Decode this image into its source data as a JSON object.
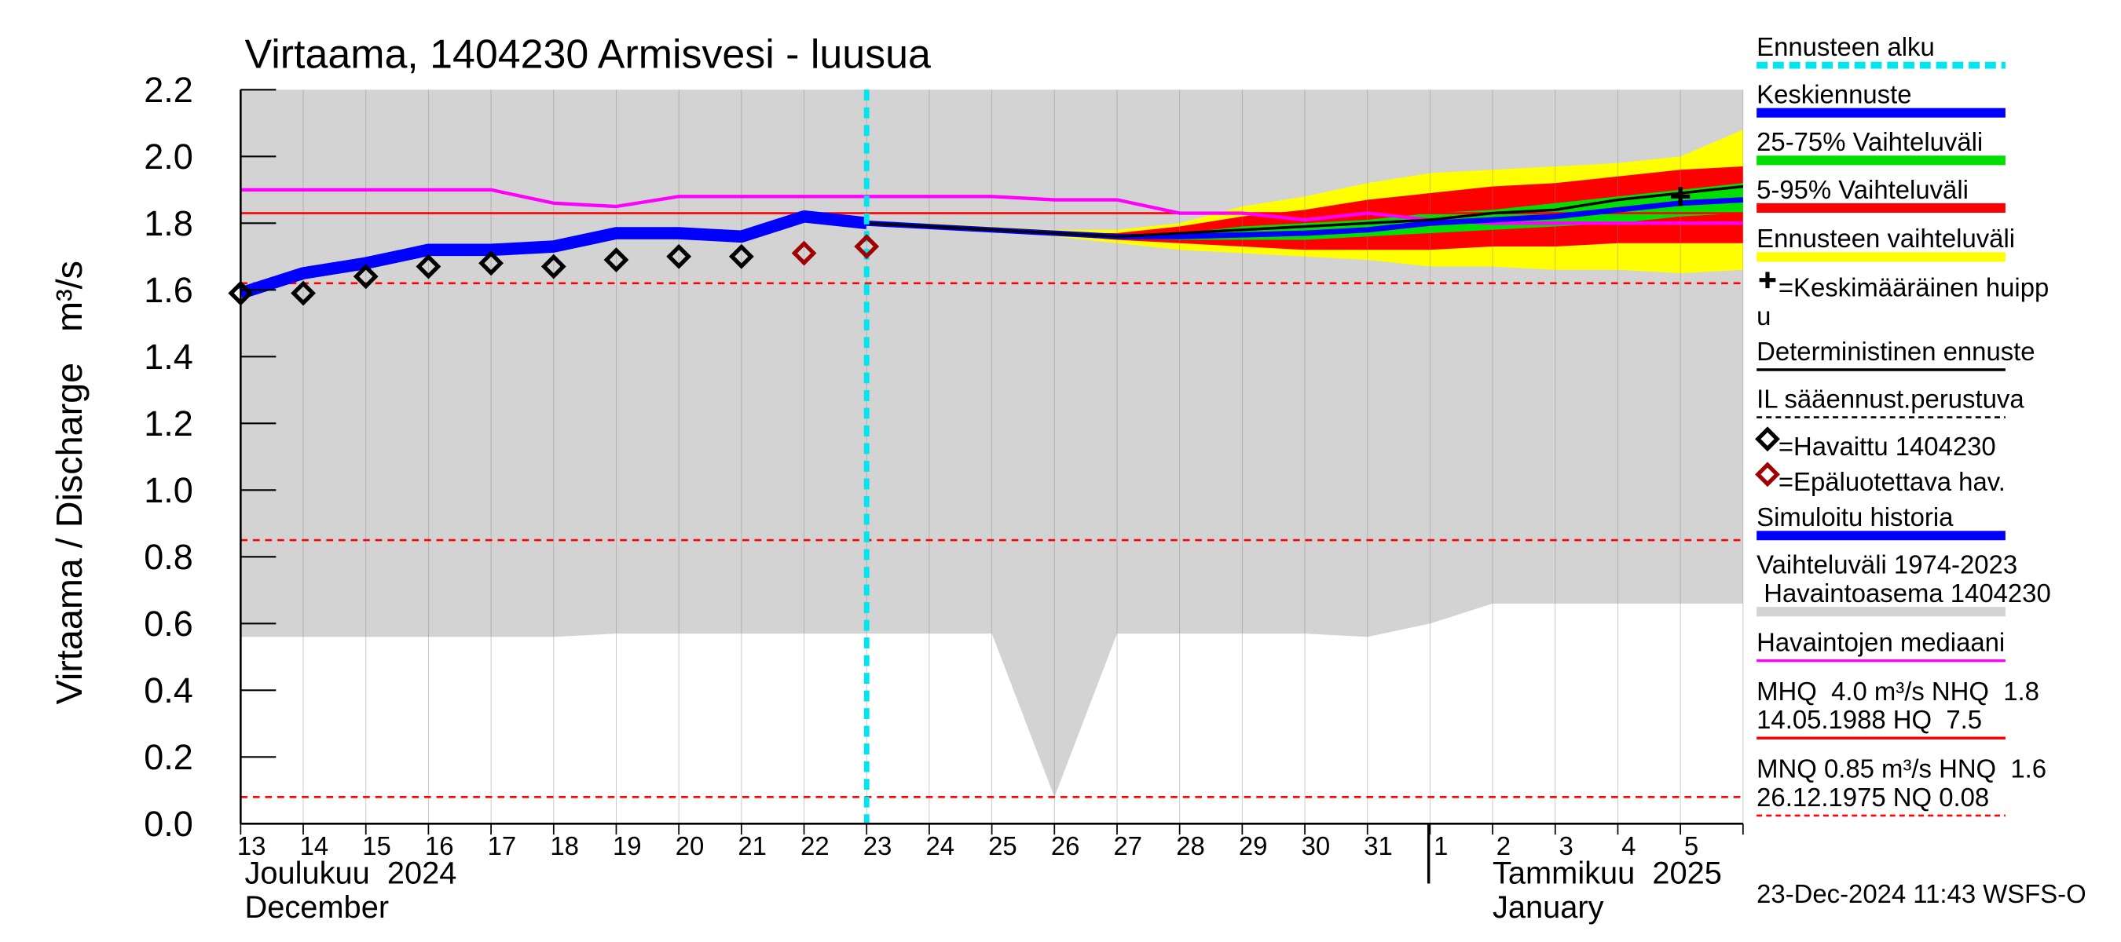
{
  "chart_data": {
    "type": "line",
    "title": "Virtaama, 1404230 Armisvesi - luusua",
    "y_label": "Virtaama / Discharge   m³/s",
    "categories": [
      "13",
      "14",
      "15",
      "16",
      "17",
      "18",
      "19",
      "20",
      "21",
      "22",
      "23",
      "24",
      "25",
      "26",
      "27",
      "28",
      "29",
      "30",
      "31",
      "1",
      "2",
      "3",
      "4",
      "5",
      null
    ],
    "month_labels": [
      [
        "Joulukuu  2024",
        "December"
      ],
      [
        "Tammikuu  2025",
        "January"
      ]
    ],
    "ylim": [
      0,
      2.2
    ],
    "yticks": [
      {
        "value": 0,
        "label": "0.0"
      },
      0.2,
      0.4,
      0.6,
      0.8,
      {
        "value": 1,
        "label": "1.0"
      },
      1.2,
      1.4,
      1.6,
      1.8,
      {
        "value": 2,
        "label": "2.0"
      },
      2.2
    ],
    "grid": true,
    "bands": [
      {
        "color": "#d3d3d3",
        "high": [
          2.2,
          2.2,
          2.2,
          2.2,
          2.2,
          2.2,
          2.2,
          2.2,
          2.2,
          2.2,
          2.2,
          2.2,
          2.2,
          2.2,
          2.2,
          2.2,
          2.2,
          2.2,
          2.2,
          2.2,
          2.2,
          2.2,
          2.2,
          2.2,
          2.2
        ],
        "low": [
          0.56,
          0.56,
          0.56,
          0.56,
          0.56,
          0.56,
          0.57,
          0.57,
          0.57,
          0.57,
          0.57,
          0.57,
          0.57,
          0.08,
          0.57,
          0.57,
          0.57,
          0.57,
          0.56,
          0.6,
          0.66,
          0.66,
          0.66,
          0.66,
          0.66
        ]
      },
      {
        "color": "#ffff00",
        "high": [
          null,
          null,
          null,
          null,
          null,
          null,
          null,
          null,
          null,
          null,
          1.8,
          1.8,
          1.79,
          1.78,
          1.78,
          1.8,
          1.85,
          1.88,
          1.92,
          1.95,
          1.96,
          1.97,
          1.98,
          2.0,
          2.08
        ],
        "low": [
          null,
          null,
          null,
          null,
          null,
          null,
          null,
          null,
          null,
          null,
          1.8,
          1.79,
          1.78,
          1.76,
          1.74,
          1.72,
          1.71,
          1.7,
          1.69,
          1.67,
          1.67,
          1.66,
          1.66,
          1.65,
          1.66
        ]
      },
      {
        "color": "#ff0000",
        "high": [
          null,
          null,
          null,
          null,
          null,
          null,
          null,
          null,
          null,
          null,
          1.8,
          1.79,
          1.78,
          1.77,
          1.77,
          1.79,
          1.82,
          1.84,
          1.87,
          1.89,
          1.91,
          1.92,
          1.94,
          1.96,
          1.97
        ],
        "low": [
          null,
          null,
          null,
          null,
          null,
          null,
          null,
          null,
          null,
          null,
          1.8,
          1.79,
          1.78,
          1.765,
          1.75,
          1.74,
          1.73,
          1.72,
          1.72,
          1.72,
          1.73,
          1.73,
          1.74,
          1.74,
          1.74
        ]
      },
      {
        "color": "#00e000",
        "high": [
          null,
          null,
          null,
          null,
          null,
          null,
          null,
          null,
          null,
          null,
          1.8,
          1.79,
          1.78,
          1.77,
          1.765,
          1.77,
          1.79,
          1.8,
          1.81,
          1.83,
          1.84,
          1.86,
          1.88,
          1.9,
          1.92
        ],
        "low": [
          null,
          null,
          null,
          null,
          null,
          null,
          null,
          null,
          null,
          null,
          1.8,
          1.79,
          1.78,
          1.77,
          1.755,
          1.75,
          1.75,
          1.75,
          1.76,
          1.77,
          1.78,
          1.79,
          1.8,
          1.82,
          1.83
        ]
      }
    ],
    "hlines": [
      {
        "value": 1.83,
        "color": "#ff0000",
        "dash": false
      },
      {
        "value": 1.62,
        "color": "#ff0000",
        "dash": true
      },
      {
        "value": 0.85,
        "color": "#ff0000",
        "dash": true
      },
      {
        "value": 0.08,
        "color": "#ff0000",
        "dash": true
      }
    ],
    "series": [
      {
        "color": "#ff00ff",
        "width": 2.5,
        "values": [
          1.9,
          1.9,
          1.9,
          1.9,
          1.9,
          1.86,
          1.85,
          1.88,
          1.88,
          1.88,
          1.88,
          1.88,
          1.88,
          1.87,
          1.87,
          1.83,
          1.83,
          1.81,
          1.83,
          1.81,
          1.8,
          1.8,
          1.8,
          1.8,
          1.8
        ]
      },
      {
        "color": "#0000ff",
        "width": 9,
        "values": [
          1.59,
          1.65,
          1.68,
          1.72,
          1.72,
          1.73,
          1.77,
          1.77,
          1.76,
          1.82,
          1.8,
          null,
          null,
          null,
          null,
          null,
          null,
          null,
          null,
          null,
          null,
          null,
          null,
          null,
          null
        ]
      },
      {
        "color": "#0000ff",
        "width": 4,
        "values": [
          null,
          null,
          null,
          null,
          null,
          null,
          null,
          null,
          null,
          null,
          1.8,
          1.79,
          1.78,
          1.77,
          1.76,
          1.76,
          1.765,
          1.77,
          1.78,
          1.8,
          1.81,
          1.82,
          1.84,
          1.86,
          1.87
        ]
      },
      {
        "color": "#000000",
        "width": 2,
        "values": [
          null,
          null,
          null,
          null,
          null,
          null,
          null,
          null,
          null,
          null,
          1.8,
          1.79,
          1.78,
          1.77,
          1.76,
          1.77,
          1.78,
          1.79,
          1.8,
          1.81,
          1.83,
          1.84,
          1.87,
          1.89,
          1.91
        ]
      },
      {
        "color": "#000000",
        "marker": "diamond",
        "values": [
          1.59,
          1.59,
          1.64,
          1.67,
          1.68,
          1.67,
          1.69,
          1.7,
          1.7,
          null,
          null,
          null,
          null,
          null,
          null,
          null,
          null,
          null,
          null,
          null,
          null,
          null,
          null,
          null,
          null
        ]
      },
      {
        "color": "#a00000",
        "marker": "diamond",
        "values": [
          null,
          null,
          null,
          null,
          null,
          null,
          null,
          null,
          null,
          1.71,
          1.73,
          null,
          null,
          null,
          null,
          null,
          null,
          null,
          null,
          null,
          null,
          null,
          null,
          null,
          null
        ]
      },
      {
        "color": "#000000",
        "marker": "cross",
        "values": [
          null,
          null,
          null,
          null,
          null,
          null,
          null,
          null,
          null,
          null,
          null,
          null,
          null,
          null,
          null,
          null,
          null,
          null,
          null,
          null,
          null,
          null,
          null,
          1.88,
          null
        ]
      }
    ],
    "forecast_start_index": 10,
    "forecast_start_color": "#00e5ee",
    "legend": [
      {
        "lines": [
          "Ennusteen alku"
        ],
        "color": "#00e5ee",
        "style": "cyan-dash"
      },
      {
        "lines": [
          "Keskiennuste"
        ],
        "color": "#0000ff",
        "style": "thick"
      },
      {
        "lines": [
          "25-75% Vaihteluväli"
        ],
        "color": "#00e000",
        "style": "thick"
      },
      {
        "lines": [
          "5-95% Vaihteluväli"
        ],
        "color": "#ff0000",
        "style": "thick"
      },
      {
        "lines": [
          "Ennusteen vaihteluväli"
        ],
        "color": "#ffff00",
        "style": "thick"
      },
      {
        "lines": [
          "=Keskimääräinen huipp",
          "u"
        ],
        "color": "#000000",
        "style": "cross"
      },
      {
        "lines": [
          "Deterministinen ennuste"
        ],
        "color": "#000000",
        "style": "thin"
      },
      {
        "lines": [
          "IL sääennust.perustuva"
        ],
        "color": "#000000",
        "style": "thin-dash"
      },
      {
        "lines": [
          "=Havaittu 1404230"
        ],
        "color": "#000000",
        "style": "diamond"
      },
      {
        "lines": [
          "=Epäluotettava hav."
        ],
        "color": "#a00000",
        "style": "diamond"
      },
      {
        "lines": [
          "Simuloitu historia"
        ],
        "color": "#0000ff",
        "style": "thick"
      },
      {
        "lines": [
          "Vaihteluväli 1974-2023",
          " Havaintoasema 1404230"
        ],
        "color": "#d3d3d3",
        "style": "thick"
      },
      {
        "lines": [
          "Havaintojen mediaani"
        ],
        "color": "#ff00ff",
        "style": "thin"
      },
      {
        "lines": [
          "MHQ  4.0 m³/s NHQ  1.8",
          "14.05.1988 HQ  7.5"
        ],
        "color": "#ff0000",
        "style": "thin"
      },
      {
        "lines": [
          "MNQ 0.85 m³/s HNQ  1.6",
          "26.12.1975 NQ 0.08"
        ],
        "color": "#ff0000",
        "style": "thin-dash"
      }
    ],
    "footer": "23-Dec-2024 11:43 WSFS-O"
  }
}
